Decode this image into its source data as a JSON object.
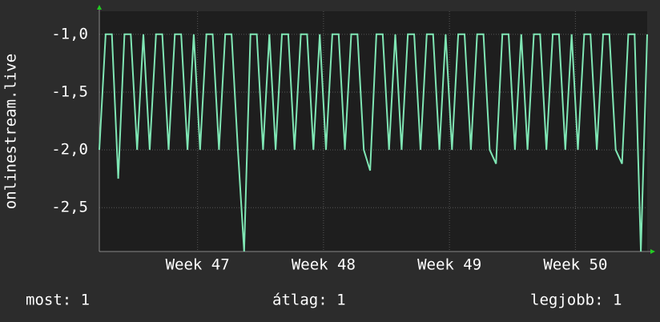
{
  "chart_data": {
    "type": "line",
    "y_label": "onlinestream.live",
    "x": [
      46.22,
      46.27,
      46.32,
      46.37,
      46.42,
      46.47,
      46.52,
      46.57,
      46.62,
      46.67,
      46.72,
      46.77,
      46.82,
      46.87,
      46.92,
      46.97,
      47.02,
      47.07,
      47.12,
      47.17,
      47.22,
      47.27,
      47.32,
      47.37,
      47.42,
      47.47,
      47.52,
      47.57,
      47.62,
      47.67,
      47.72,
      47.77,
      47.82,
      47.87,
      47.92,
      47.97,
      48.02,
      48.07,
      48.12,
      48.17,
      48.22,
      48.27,
      48.32,
      48.37,
      48.42,
      48.47,
      48.52,
      48.57,
      48.62,
      48.67,
      48.72,
      48.77,
      48.82,
      48.87,
      48.92,
      48.97,
      49.02,
      49.07,
      49.12,
      49.17,
      49.22,
      49.27,
      49.32,
      49.37,
      49.42,
      49.47,
      49.52,
      49.57,
      49.62,
      49.67,
      49.72,
      49.77,
      49.82,
      49.87,
      49.92,
      49.97,
      50.02,
      50.07,
      50.12,
      50.17,
      50.22,
      50.27,
      50.32,
      50.37,
      50.42,
      50.47,
      50.52,
      50.57
    ],
    "series": [
      {
        "name": "onlinestream.live",
        "color": "#7fe6b4",
        "values": [
          -2,
          -1,
          -1,
          -2.25,
          -1,
          -1,
          -2,
          -1,
          -2,
          -1,
          -1,
          -2,
          -1,
          -1,
          -2,
          -1,
          -2,
          -1,
          -1,
          -2,
          -1,
          -1,
          -2,
          -2.88,
          -1,
          -1,
          -2,
          -1,
          -2,
          -1,
          -1,
          -2,
          -1,
          -1,
          -2,
          -1,
          -2,
          -1,
          -1,
          -2,
          -1,
          -1,
          -2,
          -2.18,
          -1,
          -1,
          -2,
          -1,
          -2,
          -1,
          -1,
          -2,
          -1,
          -1,
          -2,
          -1,
          -2,
          -1,
          -1,
          -2,
          -1,
          -1,
          -2,
          -2.12,
          -1,
          -1,
          -2,
          -1,
          -2,
          -1,
          -1,
          -2,
          -1,
          -1,
          -2,
          -1,
          -2,
          -1,
          -1,
          -2,
          -1,
          -1,
          -2,
          -2.12,
          -1,
          -1,
          -2.88,
          -1
        ]
      }
    ],
    "xlim": [
      46.22,
      50.57
    ],
    "ylim": [
      -2.88,
      -0.8
    ],
    "xticks": [
      {
        "value": 47,
        "label": "Week 47"
      },
      {
        "value": 48,
        "label": "Week 48"
      },
      {
        "value": 49,
        "label": "Week 49"
      },
      {
        "value": 50,
        "label": "Week 50"
      }
    ],
    "yticks": [
      {
        "value": -1,
        "label": "-1,0"
      },
      {
        "value": -1.5,
        "label": "-1,5"
      },
      {
        "value": -2,
        "label": "-2,0"
      },
      {
        "value": -2.5,
        "label": "-2,5"
      }
    ],
    "grid": true,
    "stats": [
      "most: 1",
      "átlag: 1",
      "legjobb: 1"
    ]
  }
}
